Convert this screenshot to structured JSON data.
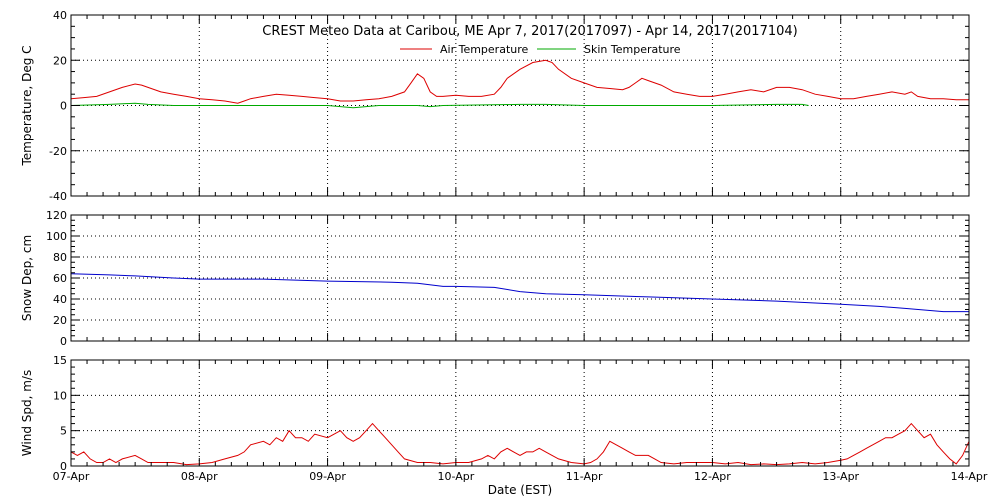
{
  "title": "CREST Meteo Data at Caribou, ME   Apr  7, 2017(2017097) - Apr 14, 2017(2017104)",
  "x_axis_label": "Date (EST)",
  "x_ticks": [
    "07-Apr",
    "08-Apr",
    "09-Apr",
    "10-Apr",
    "11-Apr",
    "12-Apr",
    "13-Apr",
    "14-Apr"
  ],
  "colors": {
    "air": "#dd0000",
    "skin": "#00aa00",
    "snow": "#0000cc",
    "wind": "#dd0000",
    "axis": "#000000",
    "grid": "#000000"
  },
  "chart_data": [
    {
      "type": "line",
      "ylabel": "Temperature, Deg C",
      "ylim": [
        -40,
        40
      ],
      "yticks": [
        -40,
        -20,
        0,
        20,
        40
      ],
      "y_minor_step": 5,
      "x_unit": "days since 07-Apr 00:00 EST",
      "xlim": [
        0,
        7
      ],
      "grid": true,
      "legend_position": "top-center",
      "series": [
        {
          "name": "Air Temperature",
          "color": "#dd0000",
          "points": [
            [
              0,
              3
            ],
            [
              0.1,
              3.5
            ],
            [
              0.2,
              4
            ],
            [
              0.3,
              6
            ],
            [
              0.4,
              8
            ],
            [
              0.5,
              9.5
            ],
            [
              0.55,
              9
            ],
            [
              0.6,
              8
            ],
            [
              0.7,
              6
            ],
            [
              0.8,
              5
            ],
            [
              0.9,
              4
            ],
            [
              1.0,
              3
            ],
            [
              1.1,
              2.5
            ],
            [
              1.2,
              2
            ],
            [
              1.3,
              1
            ],
            [
              1.35,
              2
            ],
            [
              1.4,
              3
            ],
            [
              1.5,
              4
            ],
            [
              1.6,
              5
            ],
            [
              1.7,
              4.5
            ],
            [
              1.8,
              4
            ],
            [
              1.9,
              3.5
            ],
            [
              2.0,
              3
            ],
            [
              2.1,
              2
            ],
            [
              2.2,
              2
            ],
            [
              2.3,
              2.5
            ],
            [
              2.4,
              3
            ],
            [
              2.5,
              4
            ],
            [
              2.6,
              6
            ],
            [
              2.65,
              10
            ],
            [
              2.7,
              14
            ],
            [
              2.75,
              12
            ],
            [
              2.8,
              6
            ],
            [
              2.85,
              4
            ],
            [
              2.9,
              4
            ],
            [
              3.0,
              4.5
            ],
            [
              3.1,
              4
            ],
            [
              3.2,
              4
            ],
            [
              3.3,
              5
            ],
            [
              3.35,
              8
            ],
            [
              3.4,
              12
            ],
            [
              3.5,
              16
            ],
            [
              3.6,
              19
            ],
            [
              3.7,
              20
            ],
            [
              3.75,
              19
            ],
            [
              3.8,
              16
            ],
            [
              3.9,
              12
            ],
            [
              4.0,
              10
            ],
            [
              4.1,
              8
            ],
            [
              4.2,
              7.5
            ],
            [
              4.3,
              7
            ],
            [
              4.35,
              8
            ],
            [
              4.4,
              10
            ],
            [
              4.45,
              12
            ],
            [
              4.5,
              11
            ],
            [
              4.6,
              9
            ],
            [
              4.7,
              6
            ],
            [
              4.8,
              5
            ],
            [
              4.9,
              4
            ],
            [
              5.0,
              4
            ],
            [
              5.1,
              5
            ],
            [
              5.2,
              6
            ],
            [
              5.3,
              7
            ],
            [
              5.4,
              6
            ],
            [
              5.5,
              8
            ],
            [
              5.6,
              8
            ],
            [
              5.7,
              7
            ],
            [
              5.8,
              5
            ],
            [
              5.9,
              4
            ],
            [
              6.0,
              3
            ],
            [
              6.1,
              3
            ],
            [
              6.2,
              4
            ],
            [
              6.3,
              5
            ],
            [
              6.4,
              6
            ],
            [
              6.5,
              5
            ],
            [
              6.55,
              6
            ],
            [
              6.6,
              4
            ],
            [
              6.7,
              3
            ],
            [
              6.8,
              3
            ],
            [
              6.9,
              2.5
            ],
            [
              7.0,
              2.5
            ]
          ]
        },
        {
          "name": "Skin Temperature",
          "color": "#00aa00",
          "points": [
            [
              0,
              0
            ],
            [
              0.3,
              0.5
            ],
            [
              0.5,
              1
            ],
            [
              0.6,
              0.5
            ],
            [
              0.8,
              0
            ],
            [
              1.0,
              0
            ],
            [
              1.5,
              0
            ],
            [
              2.0,
              0
            ],
            [
              2.2,
              -1
            ],
            [
              2.4,
              0
            ],
            [
              2.7,
              0
            ],
            [
              2.8,
              -0.5
            ],
            [
              2.9,
              0
            ],
            [
              3.5,
              0.5
            ],
            [
              3.7,
              0.5
            ],
            [
              4.0,
              0
            ],
            [
              4.5,
              0
            ],
            [
              5.0,
              0
            ],
            [
              5.5,
              0.5
            ],
            [
              5.7,
              0.5
            ],
            [
              5.75,
              0
            ]
          ]
        }
      ]
    },
    {
      "type": "line",
      "ylabel": "Snow Dep, cm",
      "ylim": [
        0,
        120
      ],
      "yticks": [
        0,
        20,
        40,
        60,
        80,
        100,
        120
      ],
      "y_minor_step": 5,
      "x_unit": "days since 07-Apr 00:00 EST",
      "xlim": [
        0,
        7
      ],
      "grid": true,
      "series": [
        {
          "name": "",
          "color": "#0000cc",
          "points": [
            [
              0,
              64
            ],
            [
              0.3,
              63
            ],
            [
              0.5,
              62
            ],
            [
              0.8,
              60
            ],
            [
              1.0,
              59
            ],
            [
              1.5,
              59
            ],
            [
              2.0,
              57
            ],
            [
              2.5,
              56
            ],
            [
              2.7,
              55
            ],
            [
              2.9,
              52
            ],
            [
              3.0,
              52
            ],
            [
              3.3,
              51
            ],
            [
              3.5,
              47
            ],
            [
              3.7,
              45
            ],
            [
              4.0,
              44
            ],
            [
              4.5,
              42
            ],
            [
              5.0,
              40
            ],
            [
              5.5,
              38
            ],
            [
              6.0,
              35
            ],
            [
              6.3,
              33
            ],
            [
              6.5,
              31
            ],
            [
              6.8,
              28
            ],
            [
              7.0,
              28
            ]
          ]
        }
      ]
    },
    {
      "type": "line",
      "ylabel": "Wind Spd, m/s",
      "ylim": [
        0,
        15
      ],
      "yticks": [
        0,
        5,
        10,
        15
      ],
      "y_minor_step": 1,
      "x_unit": "days since 07-Apr 00:00 EST",
      "xlim": [
        0,
        7
      ],
      "grid": true,
      "series": [
        {
          "name": "",
          "color": "#dd0000",
          "points": [
            [
              0,
              2
            ],
            [
              0.05,
              1.5
            ],
            [
              0.1,
              2
            ],
            [
              0.15,
              1
            ],
            [
              0.2,
              0.5
            ],
            [
              0.25,
              0.5
            ],
            [
              0.3,
              1
            ],
            [
              0.35,
              0.5
            ],
            [
              0.4,
              1
            ],
            [
              0.5,
              1.5
            ],
            [
              0.55,
              1
            ],
            [
              0.6,
              0.5
            ],
            [
              0.7,
              0.5
            ],
            [
              0.8,
              0.5
            ],
            [
              0.9,
              0.2
            ],
            [
              1.0,
              0.3
            ],
            [
              1.1,
              0.5
            ],
            [
              1.2,
              1
            ],
            [
              1.3,
              1.5
            ],
            [
              1.35,
              2
            ],
            [
              1.4,
              3
            ],
            [
              1.5,
              3.5
            ],
            [
              1.55,
              3
            ],
            [
              1.6,
              4
            ],
            [
              1.65,
              3.5
            ],
            [
              1.7,
              5
            ],
            [
              1.75,
              4
            ],
            [
              1.8,
              4
            ],
            [
              1.85,
              3.5
            ],
            [
              1.9,
              4.5
            ],
            [
              2.0,
              4
            ],
            [
              2.05,
              4.5
            ],
            [
              2.1,
              5
            ],
            [
              2.15,
              4
            ],
            [
              2.2,
              3.5
            ],
            [
              2.25,
              4
            ],
            [
              2.3,
              5
            ],
            [
              2.35,
              6
            ],
            [
              2.4,
              5
            ],
            [
              2.45,
              4
            ],
            [
              2.5,
              3
            ],
            [
              2.55,
              2
            ],
            [
              2.6,
              1
            ],
            [
              2.7,
              0.5
            ],
            [
              2.8,
              0.5
            ],
            [
              2.9,
              0.3
            ],
            [
              3.0,
              0.5
            ],
            [
              3.1,
              0.5
            ],
            [
              3.2,
              1
            ],
            [
              3.25,
              1.5
            ],
            [
              3.3,
              1
            ],
            [
              3.35,
              2
            ],
            [
              3.4,
              2.5
            ],
            [
              3.45,
              2
            ],
            [
              3.5,
              1.5
            ],
            [
              3.55,
              2
            ],
            [
              3.6,
              2
            ],
            [
              3.65,
              2.5
            ],
            [
              3.7,
              2
            ],
            [
              3.75,
              1.5
            ],
            [
              3.8,
              1
            ],
            [
              3.9,
              0.5
            ],
            [
              4.0,
              0.3
            ],
            [
              4.05,
              0.5
            ],
            [
              4.1,
              1
            ],
            [
              4.15,
              2
            ],
            [
              4.2,
              3.5
            ],
            [
              4.25,
              3
            ],
            [
              4.3,
              2.5
            ],
            [
              4.35,
              2
            ],
            [
              4.4,
              1.5
            ],
            [
              4.5,
              1.5
            ],
            [
              4.55,
              1
            ],
            [
              4.6,
              0.5
            ],
            [
              4.7,
              0.3
            ],
            [
              4.8,
              0.5
            ],
            [
              4.9,
              0.5
            ],
            [
              5.0,
              0.5
            ],
            [
              5.1,
              0.3
            ],
            [
              5.2,
              0.5
            ],
            [
              5.3,
              0.2
            ],
            [
              5.4,
              0.3
            ],
            [
              5.5,
              0.2
            ],
            [
              5.6,
              0.3
            ],
            [
              5.7,
              0.5
            ],
            [
              5.8,
              0.3
            ],
            [
              5.9,
              0.5
            ],
            [
              6.0,
              0.8
            ],
            [
              6.05,
              1
            ],
            [
              6.1,
              1.5
            ],
            [
              6.15,
              2
            ],
            [
              6.2,
              2.5
            ],
            [
              6.25,
              3
            ],
            [
              6.3,
              3.5
            ],
            [
              6.35,
              4
            ],
            [
              6.4,
              4
            ],
            [
              6.45,
              4.5
            ],
            [
              6.5,
              5
            ],
            [
              6.55,
              6
            ],
            [
              6.6,
              5
            ],
            [
              6.65,
              4
            ],
            [
              6.7,
              4.5
            ],
            [
              6.75,
              3
            ],
            [
              6.8,
              2
            ],
            [
              6.85,
              1
            ],
            [
              6.9,
              0.3
            ],
            [
              6.95,
              1.5
            ],
            [
              7.0,
              3.5
            ]
          ]
        }
      ]
    }
  ]
}
